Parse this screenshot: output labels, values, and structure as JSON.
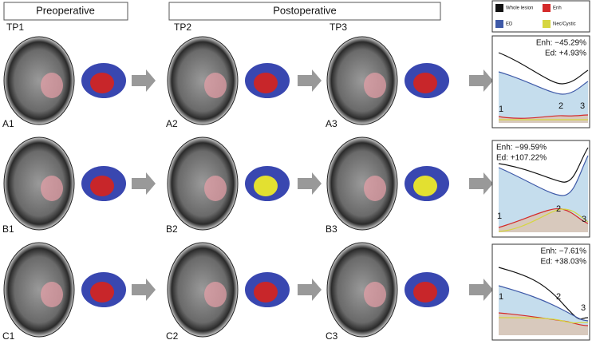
{
  "headers": [
    "Preoperative",
    "Postoperative"
  ],
  "legend": [
    {
      "label": "Whole lesion",
      "color": "#111111"
    },
    {
      "label": "Enh",
      "color": "#d42a2a"
    },
    {
      "label": "ED",
      "color": "#3f5aa8"
    },
    {
      "label": "Nec/Cystic",
      "color": "#d6d640"
    }
  ],
  "timepoints": [
    "TP1",
    "TP2",
    "TP3"
  ],
  "rows": [
    {
      "panels": [
        "A1",
        "A2",
        "A3"
      ],
      "enh": "Enh: −45.29%",
      "ed": "Ed: +4.93%",
      "points": [
        "1",
        "2",
        "3"
      ]
    },
    {
      "panels": [
        "B1",
        "B2",
        "B3"
      ],
      "enh": "Enh: −99.59%",
      "ed": "Ed: +107.22%",
      "points": [
        "1",
        "2",
        "3"
      ]
    },
    {
      "panels": [
        "C1",
        "C2",
        "C3"
      ],
      "enh": "Enh: −7.61%",
      "ed": "Ed: +38.03%",
      "points": [
        "1",
        "2",
        "3"
      ]
    }
  ]
}
